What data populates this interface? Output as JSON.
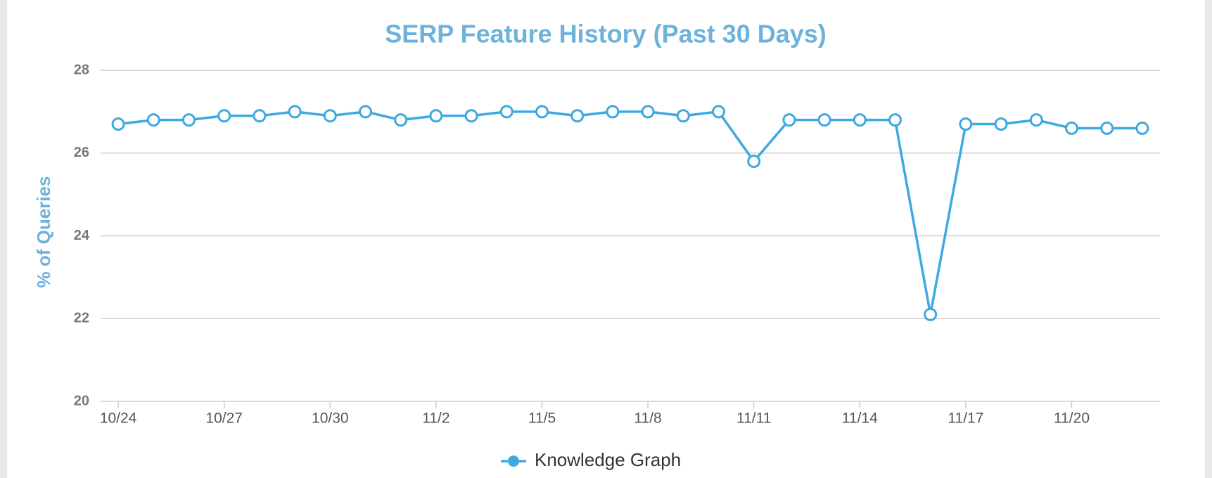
{
  "chart_data": {
    "type": "line",
    "title": "SERP Feature History (Past 30 Days)",
    "y_label": "% of Queries",
    "categories": [
      "10/24",
      null,
      null,
      "10/27",
      null,
      null,
      "10/30",
      null,
      null,
      "11/2",
      null,
      null,
      "11/5",
      null,
      null,
      "11/8",
      null,
      null,
      "11/11",
      null,
      null,
      "11/14",
      null,
      null,
      "11/17",
      null,
      null,
      "11/20",
      null,
      null
    ],
    "series": [
      {
        "name": "Knowledge Graph",
        "color": "#3ea9e0",
        "values": [
          26.7,
          26.8,
          26.8,
          26.9,
          26.9,
          27.0,
          26.9,
          27.0,
          26.8,
          26.9,
          26.9,
          27.0,
          27.0,
          26.9,
          27.0,
          27.0,
          26.9,
          27.0,
          25.8,
          26.8,
          26.8,
          26.8,
          26.8,
          22.1,
          26.7,
          26.7,
          26.8,
          26.6,
          26.6,
          26.6
        ]
      }
    ],
    "ylim": [
      20,
      28
    ],
    "yticks": [
      20,
      22,
      24,
      26,
      28
    ],
    "grid": true,
    "legend": "bottom"
  }
}
